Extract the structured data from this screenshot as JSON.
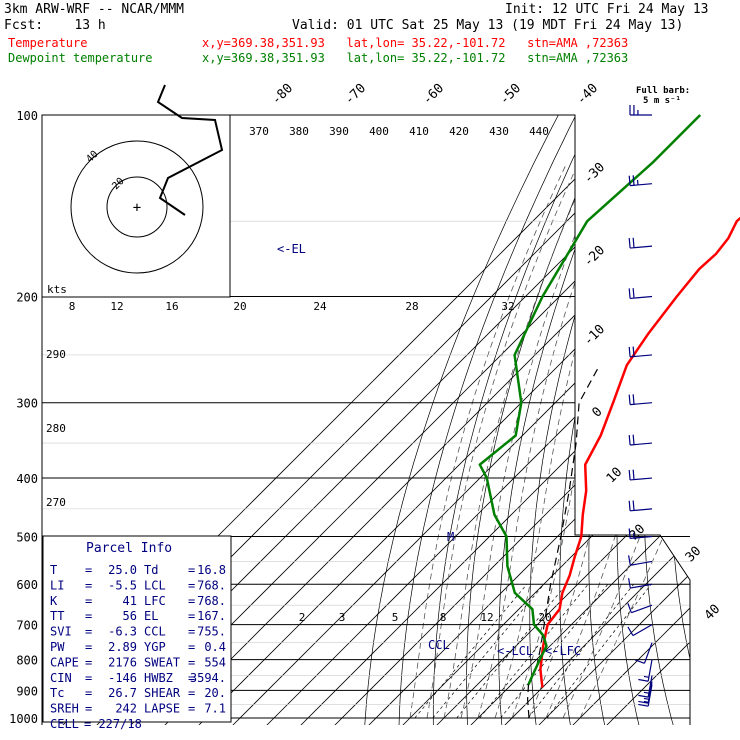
{
  "header": {
    "model": "3km ARW-WRF -- NCAR/MMM",
    "init": "Init: 12 UTC Fri 24 May 13",
    "fcst": "Fcst:    13 h",
    "valid": "Valid: 01 UTC Sat 25 May 13 (19 MDT Fri 24 May 13)",
    "temp_label": "Temperature",
    "dew_label": "Dewpoint temperature",
    "loc_text": "x,y=369.38,351.93   lat,lon= 35.22,-101.72   stn=AMA ,72363"
  },
  "colors": {
    "temperature": "#ff0000",
    "dewpoint": "#008000",
    "text_blue": "#000080",
    "axis": "#000000"
  },
  "barb_legend": {
    "line1": "Full barb:",
    "line2": "5 m s⁻¹"
  },
  "hodograph": {
    "units": "kts",
    "ring_labels": [
      "40",
      "20"
    ]
  },
  "chart_data": {
    "type": "line",
    "title": "",
    "xlabel": "",
    "ylabel": "",
    "y_scale": "log-pressure (hPa)",
    "pressure_ticks": [
      "100",
      "200",
      "300",
      "400",
      "500",
      "600",
      "700",
      "800",
      "900",
      "1000"
    ],
    "isotherm_labels": [
      "-80",
      "-70",
      "-60",
      "-50",
      "-40",
      "-30",
      "-20",
      "-10",
      "0",
      "10",
      "20",
      "30",
      "40"
    ],
    "theta_e_labels": [
      "370",
      "380",
      "390",
      "400",
      "410",
      "420",
      "430",
      "440"
    ],
    "theta_labels_left": [
      "290",
      "280",
      "270"
    ],
    "mixing_ratio_labels_top": [
      "8",
      "12",
      "16",
      "20",
      "24",
      "28",
      "32"
    ],
    "mixing_ratio_labels_low": [
      "2",
      "3",
      "5",
      "8",
      "12",
      "20"
    ],
    "annotations": [
      "<-EL",
      "<-LCL",
      "<-LFC",
      "CCL",
      "M"
    ],
    "series": [
      {
        "name": "Temperature",
        "color": "#ff0000",
        "points": [
          [
            -62,
            100
          ],
          [
            -60,
            115
          ],
          [
            -58.5,
            130
          ],
          [
            -60,
            150
          ],
          [
            -57.5,
            160
          ],
          [
            -56.5,
            170
          ],
          [
            -57,
            180
          ],
          [
            -55.5,
            200
          ],
          [
            -53,
            230
          ],
          [
            -50,
            260
          ],
          [
            -43,
            300
          ],
          [
            -37,
            340
          ],
          [
            -33,
            380
          ],
          [
            -25,
            420
          ],
          [
            -19,
            460
          ],
          [
            -13,
            500
          ],
          [
            -9,
            540
          ],
          [
            -5,
            580
          ],
          [
            -2,
            620
          ],
          [
            2,
            660
          ],
          [
            3,
            700
          ],
          [
            8,
            760
          ],
          [
            14,
            830
          ],
          [
            18,
            870
          ],
          [
            20,
            890
          ]
        ]
      },
      {
        "name": "Dewpoint temperature",
        "color": "#008000",
        "points": [
          [
            -102,
            100
          ],
          [
            -102,
            120
          ],
          [
            -104,
            150
          ],
          [
            -95,
            200
          ],
          [
            -86,
            250
          ],
          [
            -70,
            300
          ],
          [
            -62,
            340
          ],
          [
            -64,
            380
          ],
          [
            -58,
            400
          ],
          [
            -45,
            460
          ],
          [
            -35,
            500
          ],
          [
            -26,
            560
          ],
          [
            -16,
            620
          ],
          [
            -6,
            660
          ],
          [
            -1,
            700
          ],
          [
            5,
            730
          ],
          [
            9,
            760
          ],
          [
            11,
            800
          ],
          [
            14,
            860
          ],
          [
            15,
            880
          ]
        ]
      }
    ],
    "parcel_path": [
      [
        25,
        1000
      ],
      [
        19,
        930
      ],
      [
        15,
        880
      ],
      [
        12,
        820
      ],
      [
        8,
        768
      ],
      [
        2,
        700
      ],
      [
        -8,
        600
      ],
      [
        -19,
        500
      ],
      [
        -30,
        420
      ],
      [
        -42,
        350
      ],
      [
        -53,
        300
      ],
      [
        -58,
        260
      ]
    ],
    "wind_barbs": [
      [
        100,
        270,
        25
      ],
      [
        130,
        265,
        25
      ],
      [
        165,
        265,
        22
      ],
      [
        200,
        265,
        22
      ],
      [
        250,
        265,
        20
      ],
      [
        300,
        265,
        20
      ],
      [
        350,
        265,
        20
      ],
      [
        400,
        265,
        18
      ],
      [
        450,
        265,
        18
      ],
      [
        500,
        265,
        15
      ],
      [
        550,
        260,
        12
      ],
      [
        600,
        260,
        10
      ],
      [
        650,
        250,
        10
      ],
      [
        700,
        240,
        10
      ],
      [
        750,
        200,
        12
      ],
      [
        800,
        190,
        15
      ],
      [
        850,
        190,
        17
      ],
      [
        870,
        190,
        17
      ],
      [
        880,
        190,
        16
      ]
    ],
    "hodograph_points": [
      [
        165,
        85
      ],
      [
        158,
        102
      ],
      [
        182,
        118
      ],
      [
        215,
        120
      ],
      [
        222,
        150
      ],
      [
        168,
        178
      ],
      [
        160,
        198
      ],
      [
        185,
        215
      ]
    ]
  },
  "parcel_info": {
    "title": "Parcel Info",
    "rows": [
      {
        "k1": "T",
        "v1": "25.0",
        "k2": "Td",
        "v2": "16.8"
      },
      {
        "k1": "LI",
        "v1": "-5.5",
        "k2": "LCL",
        "v2": "768."
      },
      {
        "k1": "K",
        "v1": "41",
        "k2": "LFC",
        "v2": "768."
      },
      {
        "k1": "TT",
        "v1": "56",
        "k2": "EL",
        "v2": "167."
      },
      {
        "k1": "SVI",
        "v1": "-6.3",
        "k2": "CCL",
        "v2": "755."
      },
      {
        "k1": "PW",
        "v1": "2.89",
        "k2": "YGP",
        "v2": "0.4"
      },
      {
        "k1": "CAPE",
        "v1": "2176",
        "k2": "SWEAT",
        "v2": "554"
      },
      {
        "k1": "CIN",
        "v1": "-146",
        "k2": "HWBZ",
        "v2": "3594."
      },
      {
        "k1": "Tc",
        "v1": "26.7",
        "k2": "SHEAR",
        "v2": "20."
      },
      {
        "k1": "SREH",
        "v1": "242",
        "k2": "LAPSE",
        "v2": "7.1"
      },
      {
        "k1": "CELL",
        "v1": "227/18",
        "k2": "",
        "v2": ""
      }
    ]
  }
}
